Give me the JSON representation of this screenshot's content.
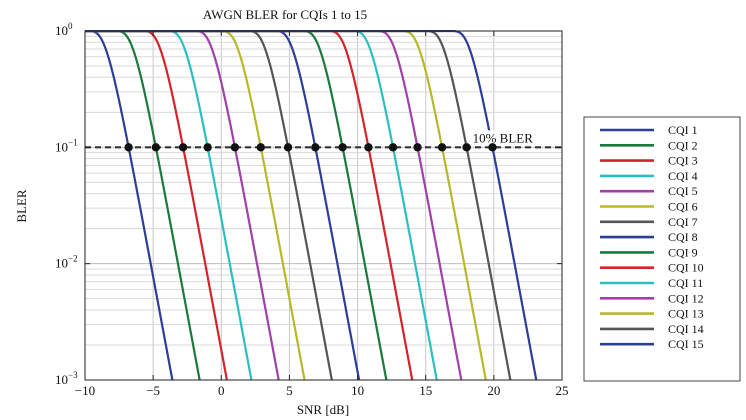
{
  "chart_data": {
    "type": "line",
    "title": "AWGN BLER for CQIs 1 to 15",
    "xlabel": "SNR [dB]",
    "ylabel": "BLER",
    "xlim": [
      -10,
      25
    ],
    "ylim": [
      0.001,
      1
    ],
    "yscale": "log",
    "xticks": [
      "−10",
      "−5",
      "0",
      "5",
      "10",
      "15",
      "20",
      "25"
    ],
    "xtick_values": [
      -10,
      -5,
      0,
      5,
      10,
      15,
      20,
      25
    ],
    "yticks": [
      {
        "value": 1,
        "base": "10",
        "exp": "0"
      },
      {
        "value": 0.1,
        "base": "10",
        "exp": "−1"
      },
      {
        "value": 0.01,
        "base": "10",
        "exp": "−2"
      },
      {
        "value": 0.001,
        "base": "10",
        "exp": "−3"
      }
    ],
    "grid": true,
    "legend_position": "right",
    "reference_line": {
      "y": 0.1,
      "label": "10% BLER",
      "color": "#333333"
    },
    "series": [
      {
        "name": "CQI 1",
        "color": "#2c3e99",
        "snr_at_10pct": -6.8
      },
      {
        "name": "CQI 2",
        "color": "#1a7a3c",
        "snr_at_10pct": -4.8
      },
      {
        "name": "CQI 3",
        "color": "#d4232a",
        "snr_at_10pct": -2.8
      },
      {
        "name": "CQI 4",
        "color": "#2bbfc0",
        "snr_at_10pct": -1.0
      },
      {
        "name": "CQI 5",
        "color": "#a040a8",
        "snr_at_10pct": 1.0
      },
      {
        "name": "CQI 6",
        "color": "#b8b82a",
        "snr_at_10pct": 2.9
      },
      {
        "name": "CQI 7",
        "color": "#555555",
        "snr_at_10pct": 4.9
      },
      {
        "name": "CQI 8",
        "color": "#2c3e99",
        "snr_at_10pct": 6.9
      },
      {
        "name": "CQI 9",
        "color": "#1a7a3c",
        "snr_at_10pct": 8.9
      },
      {
        "name": "CQI 10",
        "color": "#d4232a",
        "snr_at_10pct": 10.8
      },
      {
        "name": "CQI 11",
        "color": "#2bbfc0",
        "snr_at_10pct": 12.6
      },
      {
        "name": "CQI 12",
        "color": "#a040a8",
        "snr_at_10pct": 14.4
      },
      {
        "name": "CQI 13",
        "color": "#b8b82a",
        "snr_at_10pct": 16.2
      },
      {
        "name": "CQI 14",
        "color": "#555555",
        "snr_at_10pct": 18.0
      },
      {
        "name": "CQI 15",
        "color": "#2c3e99",
        "snr_at_10pct": 19.9
      }
    ]
  }
}
